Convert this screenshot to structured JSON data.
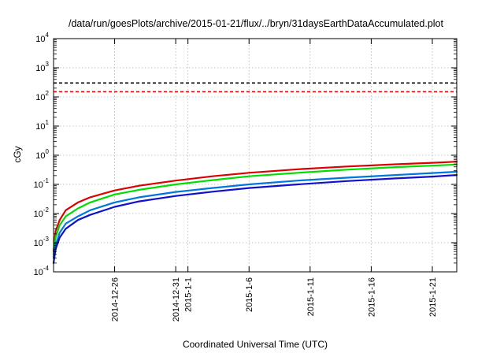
{
  "chart_data": {
    "type": "line",
    "title": "/data/run/goesPlots/archive/2015-01-21/flux/../bryn/31daysEarthDataAccumulated.plot",
    "xlabel": "Coordinated Universal Time (UTC)",
    "ylabel": "cGy",
    "yscale": "log",
    "ylim": [
      0.0001,
      10000
    ],
    "xlim": [
      "2014-12-21",
      "2015-01-23"
    ],
    "grid": true,
    "y_ticks": [
      {
        "value": 0.0001,
        "base": "10",
        "exp": "-4"
      },
      {
        "value": 0.001,
        "base": "10",
        "exp": "-3"
      },
      {
        "value": 0.01,
        "base": "10",
        "exp": "-2"
      },
      {
        "value": 0.1,
        "base": "10",
        "exp": "-1"
      },
      {
        "value": 1,
        "base": "10",
        "exp": "0"
      },
      {
        "value": 10,
        "base": "10",
        "exp": "1"
      },
      {
        "value": 100,
        "base": "10",
        "exp": "2"
      },
      {
        "value": 1000,
        "base": "10",
        "exp": "3"
      },
      {
        "value": 10000,
        "base": "10",
        "exp": "4"
      }
    ],
    "x_ticks": [
      {
        "value": "2014-12-26",
        "lines": [
          "2014-12-26"
        ]
      },
      {
        "value": "2014-12-31",
        "lines": [
          "2014-12-31"
        ]
      },
      {
        "value": "2015-01-01",
        "lines": [
          "2015-1-1"
        ]
      },
      {
        "value": "2015-01-06",
        "lines": [
          "2015-1-6"
        ]
      },
      {
        "value": "2015-01-11",
        "lines": [
          "2015-1-11"
        ]
      },
      {
        "value": "2015-01-16",
        "lines": [
          "2015-1-16"
        ]
      },
      {
        "value": "2015-01-21",
        "lines": [
          "2015-1-21"
        ]
      }
    ],
    "reference_lines": [
      {
        "y": 300,
        "color": "#000000",
        "style": "dashed"
      },
      {
        "y": 150,
        "color": "#ff0000",
        "style": "dashed"
      }
    ],
    "series": [
      {
        "color": "#dd0000",
        "x": [
          "2014-12-21",
          "2014-12-21T04:00",
          "2014-12-21T12:00",
          "2014-12-22",
          "2014-12-23",
          "2014-12-24",
          "2014-12-26",
          "2014-12-28",
          "2014-12-31",
          "2015-01-03",
          "2015-01-06",
          "2015-01-10",
          "2015-01-14",
          "2015-01-18",
          "2015-01-21",
          "2015-01-23"
        ],
        "y": [
          0.0005,
          0.0025,
          0.006,
          0.013,
          0.024,
          0.036,
          0.062,
          0.09,
          0.135,
          0.19,
          0.25,
          0.33,
          0.41,
          0.49,
          0.55,
          0.6
        ]
      },
      {
        "color": "#00dd00",
        "x": [
          "2014-12-21",
          "2014-12-21T04:00",
          "2014-12-21T12:00",
          "2014-12-22",
          "2014-12-23",
          "2014-12-24",
          "2014-12-26",
          "2014-12-28",
          "2014-12-31",
          "2015-01-03",
          "2015-01-06",
          "2015-01-10",
          "2015-01-14",
          "2015-01-18",
          "2015-01-21",
          "2015-01-23"
        ],
        "y": [
          0.0004,
          0.0015,
          0.004,
          0.008,
          0.015,
          0.024,
          0.045,
          0.065,
          0.1,
          0.14,
          0.19,
          0.25,
          0.32,
          0.39,
          0.44,
          0.48
        ]
      },
      {
        "color": "#0077dd",
        "x": [
          "2014-12-21",
          "2014-12-21T04:00",
          "2014-12-21T12:00",
          "2014-12-22",
          "2014-12-23",
          "2014-12-24",
          "2014-12-26",
          "2014-12-28",
          "2014-12-31",
          "2015-01-03",
          "2015-01-06",
          "2015-01-10",
          "2015-01-14",
          "2015-01-18",
          "2015-01-21",
          "2015-01-23"
        ],
        "y": [
          0.0003,
          0.0008,
          0.0022,
          0.0045,
          0.008,
          0.013,
          0.024,
          0.036,
          0.055,
          0.075,
          0.1,
          0.135,
          0.17,
          0.21,
          0.245,
          0.27
        ]
      },
      {
        "color": "#1111cc",
        "x": [
          "2014-12-21",
          "2014-12-21T04:00",
          "2014-12-21T12:00",
          "2014-12-22",
          "2014-12-23",
          "2014-12-24",
          "2014-12-26",
          "2014-12-28",
          "2014-12-31",
          "2015-01-03",
          "2015-01-06",
          "2015-01-10",
          "2015-01-14",
          "2015-01-18",
          "2015-01-21",
          "2015-01-23"
        ],
        "y": [
          0.0002,
          0.0006,
          0.0015,
          0.003,
          0.006,
          0.009,
          0.017,
          0.026,
          0.04,
          0.056,
          0.075,
          0.1,
          0.13,
          0.16,
          0.185,
          0.21
        ]
      }
    ]
  }
}
